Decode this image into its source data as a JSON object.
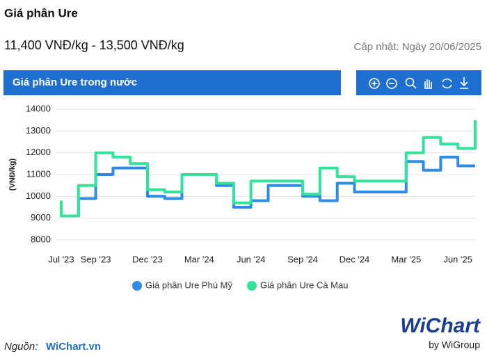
{
  "header": {
    "title": "Giá phân Ure",
    "price_range": "11,400 VNĐ/kg - 13,500 VNĐ/kg",
    "updated": "Cập nhật: Ngày 20/06/2025"
  },
  "chart_data": {
    "type": "line",
    "title": "Giá phân Ure trong nước",
    "y_label": "(VNĐ/kg)",
    "xlim": [
      "2023-07",
      "2025-07"
    ],
    "xticks": [
      {
        "value": "2023-07",
        "label": "Jul '23"
      },
      {
        "value": "2023-09",
        "label": "Sep '23"
      },
      {
        "value": "2023-12",
        "label": "Dec '23"
      },
      {
        "value": "2024-03",
        "label": "Mar '24"
      },
      {
        "value": "2024-06",
        "label": "Jun '24"
      },
      {
        "value": "2024-09",
        "label": "Sep '24"
      },
      {
        "value": "2024-12",
        "label": "Dec '24"
      },
      {
        "value": "2025-03",
        "label": "Mar '25"
      },
      {
        "value": "2025-06",
        "label": "Jun '25"
      }
    ],
    "ylim": [
      8000,
      14000
    ],
    "yticks": [
      8000,
      9000,
      10000,
      11000,
      12000,
      13000,
      14000
    ],
    "grid": true,
    "series": [
      {
        "name": "Giá phân Ure Phú Mỹ",
        "color": "#2f8be6",
        "x": [
          "2023-07",
          "2023-08",
          "2023-08",
          "2023-09",
          "2023-09",
          "2023-10",
          "2023-10",
          "2023-12",
          "2023-12",
          "2024-01",
          "2024-01",
          "2024-02",
          "2024-02",
          "2024-04",
          "2024-04",
          "2024-05",
          "2024-05",
          "2024-06",
          "2024-06",
          "2024-07",
          "2024-07",
          "2024-09",
          "2024-09",
          "2024-10",
          "2024-10",
          "2024-11",
          "2024-11",
          "2024-12",
          "2024-12",
          "2025-03",
          "2025-03",
          "2025-04",
          "2025-04",
          "2025-05",
          "2025-05",
          "2025-06",
          "2025-06",
          "2025-07"
        ],
        "values": [
          9100,
          9100,
          9900,
          9900,
          11000,
          11000,
          11300,
          11300,
          10000,
          10000,
          9900,
          9900,
          11000,
          11000,
          10500,
          10500,
          9500,
          9500,
          9800,
          9800,
          10500,
          10500,
          10000,
          10000,
          9800,
          9800,
          10600,
          10600,
          10200,
          10200,
          11600,
          11600,
          11200,
          11200,
          11800,
          11800,
          11400,
          11400
        ]
      },
      {
        "name": "Giá phân Ure Cà Mau",
        "color": "#33e39b",
        "x": [
          "2023-07",
          "2023-07",
          "2023-08",
          "2023-08",
          "2023-09",
          "2023-09",
          "2023-10",
          "2023-10",
          "2023-11",
          "2023-11",
          "2023-12",
          "2023-12",
          "2024-01",
          "2024-01",
          "2024-02",
          "2024-02",
          "2024-04",
          "2024-04",
          "2024-05",
          "2024-05",
          "2024-06",
          "2024-06",
          "2024-09",
          "2024-09",
          "2024-10",
          "2024-10",
          "2024-11",
          "2024-11",
          "2024-12",
          "2024-12",
          "2025-03",
          "2025-03",
          "2025-04",
          "2025-04",
          "2025-05",
          "2025-05",
          "2025-06",
          "2025-06",
          "2025-07",
          "2025-07"
        ],
        "values": [
          9800,
          9100,
          9100,
          10500,
          10500,
          12000,
          12000,
          11800,
          11800,
          11500,
          11500,
          10300,
          10300,
          10200,
          10200,
          11000,
          11000,
          10600,
          10600,
          9700,
          9700,
          10700,
          10700,
          10100,
          10100,
          11300,
          11300,
          10900,
          10900,
          10700,
          10700,
          12000,
          12000,
          12700,
          12700,
          12400,
          12400,
          12200,
          12200,
          13500
        ]
      }
    ]
  },
  "footer": {
    "source_label": "Nguồn:",
    "source_name": "WiChart.vn"
  },
  "brand": {
    "logo": "WiChart",
    "byline": "by WiGroup"
  }
}
